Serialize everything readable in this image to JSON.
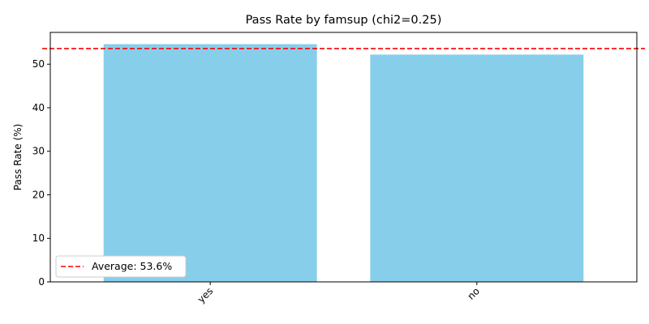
{
  "chart_data": {
    "type": "bar",
    "title": "Pass Rate by famsup (chi2=0.25)",
    "xlabel": "",
    "ylabel": "Pass Rate (%)",
    "categories": [
      "yes",
      "no"
    ],
    "values": [
      54.6,
      52.2
    ],
    "ylim": [
      0,
      57.3
    ],
    "yticks": [
      0,
      10,
      20,
      30,
      40,
      50
    ],
    "bar_color": "#87ceeb",
    "average": {
      "value": 53.6,
      "label": "Average: 53.6%",
      "color": "#ff0000",
      "style": "dashed"
    },
    "legend_position": "lower-left",
    "grid": false
  }
}
